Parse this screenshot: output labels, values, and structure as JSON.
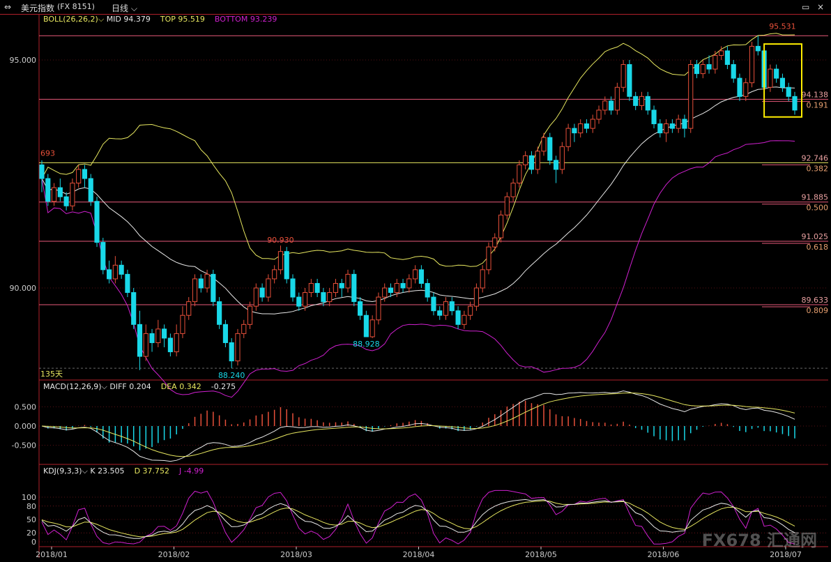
{
  "window": {
    "title": "美元指数",
    "code": "(FX 8151)",
    "period": "日线"
  },
  "chart_data": {
    "type": "candlestick",
    "x_ticks": [
      "2018/01",
      "2018/02",
      "2018/03",
      "2018/04",
      "2018/05",
      "2018/06",
      "2018/07"
    ],
    "price_panel": {
      "indicator": "BOLL(26,26,2)",
      "mid_label": "MID",
      "mid": 94.379,
      "top_label": "TOP",
      "top": 95.519,
      "bottom_label": "BOTTOM",
      "bottom": 93.239,
      "y_ticks": [
        95.0,
        90.0
      ],
      "y_tick_labels": [
        "95.000",
        "90.000"
      ],
      "annotations": [
        "693",
        "90.930",
        "88.928",
        "88.240",
        "95.531"
      ],
      "days_label": "135天",
      "fib_levels": [
        {
          "price": "94.138",
          "ratio": "0.191"
        },
        {
          "price": "92.746",
          "ratio": "0.382"
        },
        {
          "price": "91.885",
          "ratio": "0.500"
        },
        {
          "price": "91.025",
          "ratio": "0.618"
        },
        {
          "price": "89.633",
          "ratio": "0.809"
        }
      ],
      "candles": [
        [
          92.7,
          92.4,
          92.8,
          92.1
        ],
        [
          92.4,
          91.9,
          92.5,
          91.8
        ],
        [
          91.9,
          92.2,
          92.3,
          91.8
        ],
        [
          92.2,
          92.0,
          92.4,
          91.9
        ],
        [
          92.0,
          91.8,
          92.1,
          91.7
        ],
        [
          91.8,
          92.3,
          92.4,
          91.7
        ],
        [
          92.3,
          92.6,
          92.7,
          92.2
        ],
        [
          92.6,
          92.4,
          92.7,
          92.2
        ],
        [
          92.4,
          91.9,
          92.5,
          91.8
        ],
        [
          91.9,
          91.0,
          92.0,
          90.9
        ],
        [
          91.0,
          90.4,
          91.1,
          90.3
        ],
        [
          90.4,
          90.2,
          90.6,
          90.1
        ],
        [
          90.2,
          90.5,
          90.7,
          90.1
        ],
        [
          90.5,
          90.3,
          90.6,
          90.2
        ],
        [
          90.3,
          89.9,
          90.4,
          89.8
        ],
        [
          89.9,
          89.2,
          90.0,
          89.1
        ],
        [
          89.2,
          88.5,
          89.5,
          88.2
        ],
        [
          88.5,
          89.0,
          89.2,
          88.4
        ],
        [
          89.0,
          88.8,
          89.1,
          88.6
        ],
        [
          88.8,
          89.1,
          89.3,
          88.7
        ],
        [
          89.1,
          88.9,
          89.2,
          88.7
        ],
        [
          88.9,
          88.6,
          89.0,
          88.5
        ],
        [
          88.6,
          89.0,
          89.2,
          88.5
        ],
        [
          89.0,
          89.4,
          89.6,
          88.9
        ],
        [
          89.4,
          89.7,
          89.8,
          89.3
        ],
        [
          89.7,
          90.2,
          90.3,
          89.6
        ],
        [
          90.2,
          90.0,
          90.3,
          89.9
        ],
        [
          90.0,
          90.3,
          90.4,
          89.9
        ],
        [
          90.3,
          89.7,
          90.4,
          89.6
        ],
        [
          89.7,
          89.2,
          89.8,
          89.1
        ],
        [
          89.2,
          88.8,
          89.3,
          88.7
        ],
        [
          88.8,
          88.4,
          88.9,
          88.24
        ],
        [
          88.4,
          89.0,
          89.1,
          88.3
        ],
        [
          89.0,
          89.2,
          89.3,
          88.9
        ],
        [
          89.2,
          89.6,
          89.7,
          89.1
        ],
        [
          89.6,
          90.0,
          90.1,
          89.5
        ],
        [
          90.0,
          89.8,
          90.1,
          89.7
        ],
        [
          89.8,
          90.2,
          90.3,
          89.7
        ],
        [
          90.2,
          90.4,
          90.5,
          90.1
        ],
        [
          90.4,
          90.8,
          90.93,
          90.3
        ],
        [
          90.8,
          90.2,
          90.9,
          90.1
        ],
        [
          90.2,
          89.8,
          90.3,
          89.7
        ],
        [
          89.8,
          89.6,
          89.9,
          89.5
        ],
        [
          89.6,
          89.9,
          90.0,
          89.5
        ],
        [
          89.9,
          90.1,
          90.2,
          89.8
        ],
        [
          90.1,
          89.9,
          90.2,
          89.8
        ],
        [
          89.9,
          89.7,
          90.0,
          89.6
        ],
        [
          89.7,
          89.9,
          90.0,
          89.6
        ],
        [
          89.9,
          90.1,
          90.2,
          89.8
        ],
        [
          90.1,
          90.0,
          90.2,
          89.8
        ],
        [
          90.0,
          90.3,
          90.4,
          89.9
        ],
        [
          90.3,
          89.7,
          90.4,
          89.6
        ],
        [
          89.7,
          89.4,
          89.8,
          89.3
        ],
        [
          89.4,
          88.93,
          89.5,
          88.93
        ],
        [
          88.93,
          89.3,
          89.4,
          88.9
        ],
        [
          89.3,
          89.8,
          89.9,
          89.2
        ],
        [
          89.8,
          90.0,
          90.1,
          89.7
        ],
        [
          90.0,
          89.9,
          90.1,
          89.8
        ],
        [
          89.9,
          90.1,
          90.2,
          89.8
        ],
        [
          90.1,
          90.0,
          90.2,
          89.9
        ],
        [
          90.0,
          90.2,
          90.3,
          89.9
        ],
        [
          90.2,
          90.4,
          90.5,
          90.1
        ],
        [
          90.4,
          90.1,
          90.5,
          90.0
        ],
        [
          90.1,
          89.8,
          90.2,
          89.7
        ],
        [
          89.8,
          89.5,
          89.9,
          89.4
        ],
        [
          89.5,
          89.4,
          89.6,
          89.3
        ],
        [
          89.4,
          89.7,
          89.8,
          89.3
        ],
        [
          89.7,
          89.5,
          89.8,
          89.4
        ],
        [
          89.5,
          89.2,
          89.6,
          89.1
        ],
        [
          89.2,
          89.4,
          89.5,
          89.1
        ],
        [
          89.4,
          89.6,
          89.7,
          89.3
        ],
        [
          89.6,
          90.0,
          90.1,
          89.5
        ],
        [
          90.0,
          90.4,
          90.5,
          89.9
        ],
        [
          90.4,
          90.9,
          91.0,
          90.3
        ],
        [
          90.9,
          91.1,
          91.2,
          90.8
        ],
        [
          91.1,
          91.6,
          91.7,
          91.0
        ],
        [
          91.6,
          92.0,
          92.1,
          91.5
        ],
        [
          92.0,
          92.3,
          92.4,
          91.9
        ],
        [
          92.3,
          92.7,
          92.8,
          92.2
        ],
        [
          92.7,
          92.9,
          93.0,
          92.6
        ],
        [
          92.9,
          92.6,
          93.0,
          92.5
        ],
        [
          92.6,
          93.0,
          93.1,
          92.5
        ],
        [
          93.0,
          93.3,
          93.4,
          92.9
        ],
        [
          93.3,
          92.8,
          93.4,
          92.7
        ],
        [
          92.8,
          92.6,
          92.9,
          92.3
        ],
        [
          92.6,
          93.1,
          93.2,
          92.5
        ],
        [
          93.1,
          93.5,
          93.6,
          93.0
        ],
        [
          93.5,
          93.4,
          93.6,
          93.2
        ],
        [
          93.4,
          93.6,
          93.7,
          93.3
        ],
        [
          93.6,
          93.5,
          93.7,
          93.4
        ],
        [
          93.5,
          93.7,
          93.8,
          93.4
        ],
        [
          93.7,
          93.9,
          94.0,
          93.6
        ],
        [
          93.9,
          94.1,
          94.2,
          93.8
        ],
        [
          94.1,
          93.9,
          94.2,
          93.8
        ],
        [
          93.9,
          94.4,
          94.5,
          93.8
        ],
        [
          94.4,
          94.9,
          95.0,
          94.3
        ],
        [
          94.9,
          94.2,
          95.0,
          94.1
        ],
        [
          94.2,
          94.0,
          94.3,
          93.9
        ],
        [
          94.0,
          94.2,
          94.3,
          93.9
        ],
        [
          94.2,
          93.9,
          94.3,
          93.8
        ],
        [
          93.9,
          93.6,
          94.0,
          93.5
        ],
        [
          93.6,
          93.4,
          93.7,
          93.3
        ],
        [
          93.4,
          93.6,
          93.7,
          93.2
        ],
        [
          93.6,
          93.5,
          93.7,
          93.4
        ],
        [
          93.5,
          93.7,
          93.8,
          93.4
        ],
        [
          93.7,
          93.5,
          93.8,
          93.3
        ],
        [
          93.5,
          94.9,
          95.0,
          93.4
        ],
        [
          94.9,
          94.7,
          95.0,
          94.6
        ],
        [
          94.7,
          94.9,
          95.0,
          94.6
        ],
        [
          94.9,
          94.8,
          95.1,
          94.7
        ],
        [
          94.8,
          95.1,
          95.2,
          94.7
        ],
        [
          95.1,
          95.2,
          95.3,
          95.0
        ],
        [
          95.2,
          94.9,
          95.3,
          94.8
        ],
        [
          94.9,
          94.6,
          95.0,
          94.5
        ],
        [
          94.6,
          94.2,
          94.7,
          94.1
        ],
        [
          94.2,
          94.5,
          94.6,
          94.1
        ],
        [
          94.5,
          95.3,
          95.4,
          94.4
        ],
        [
          95.3,
          95.2,
          95.53,
          95.1
        ],
        [
          95.2,
          94.4,
          95.3,
          94.3
        ],
        [
          94.4,
          94.8,
          94.9,
          94.3
        ],
        [
          94.8,
          94.6,
          94.9,
          94.5
        ],
        [
          94.6,
          94.4,
          94.7,
          94.3
        ],
        [
          94.4,
          94.2,
          94.5,
          94.1
        ],
        [
          94.2,
          93.9,
          94.3,
          93.8
        ]
      ]
    },
    "macd_panel": {
      "indicator": "MACD(12,26,9)",
      "diff_label": "DIFF",
      "diff": 0.204,
      "dea_label": "DEA",
      "dea": 0.342,
      "hist": -0.275,
      "hist_label": "-0.275",
      "y_ticks": [
        0.5,
        0.0,
        -0.5
      ],
      "y_tick_labels": [
        "0.500",
        "0.000",
        "-0.500"
      ]
    },
    "kdj_panel": {
      "indicator": "KDJ(9,3,3)",
      "k_label": "K",
      "k": 23.505,
      "d_label": "D",
      "d": 37.752,
      "j_label": "J",
      "j": -4.99,
      "y_ticks": [
        100,
        80,
        50,
        20,
        0
      ],
      "y_tick_labels": [
        "100",
        "80",
        "50",
        "20",
        "0"
      ]
    }
  },
  "watermark": "FX678 汇通网",
  "colors": {
    "bg": "#000000",
    "up": "#e8503a",
    "down": "#19d8e8",
    "boll_mid": "#e8e8e8",
    "boll_top": "#e8e860",
    "boll_bottom": "#d020d0",
    "grid": "#b0202a",
    "fib": "#e85a7a",
    "highlight": "#ffee00"
  }
}
